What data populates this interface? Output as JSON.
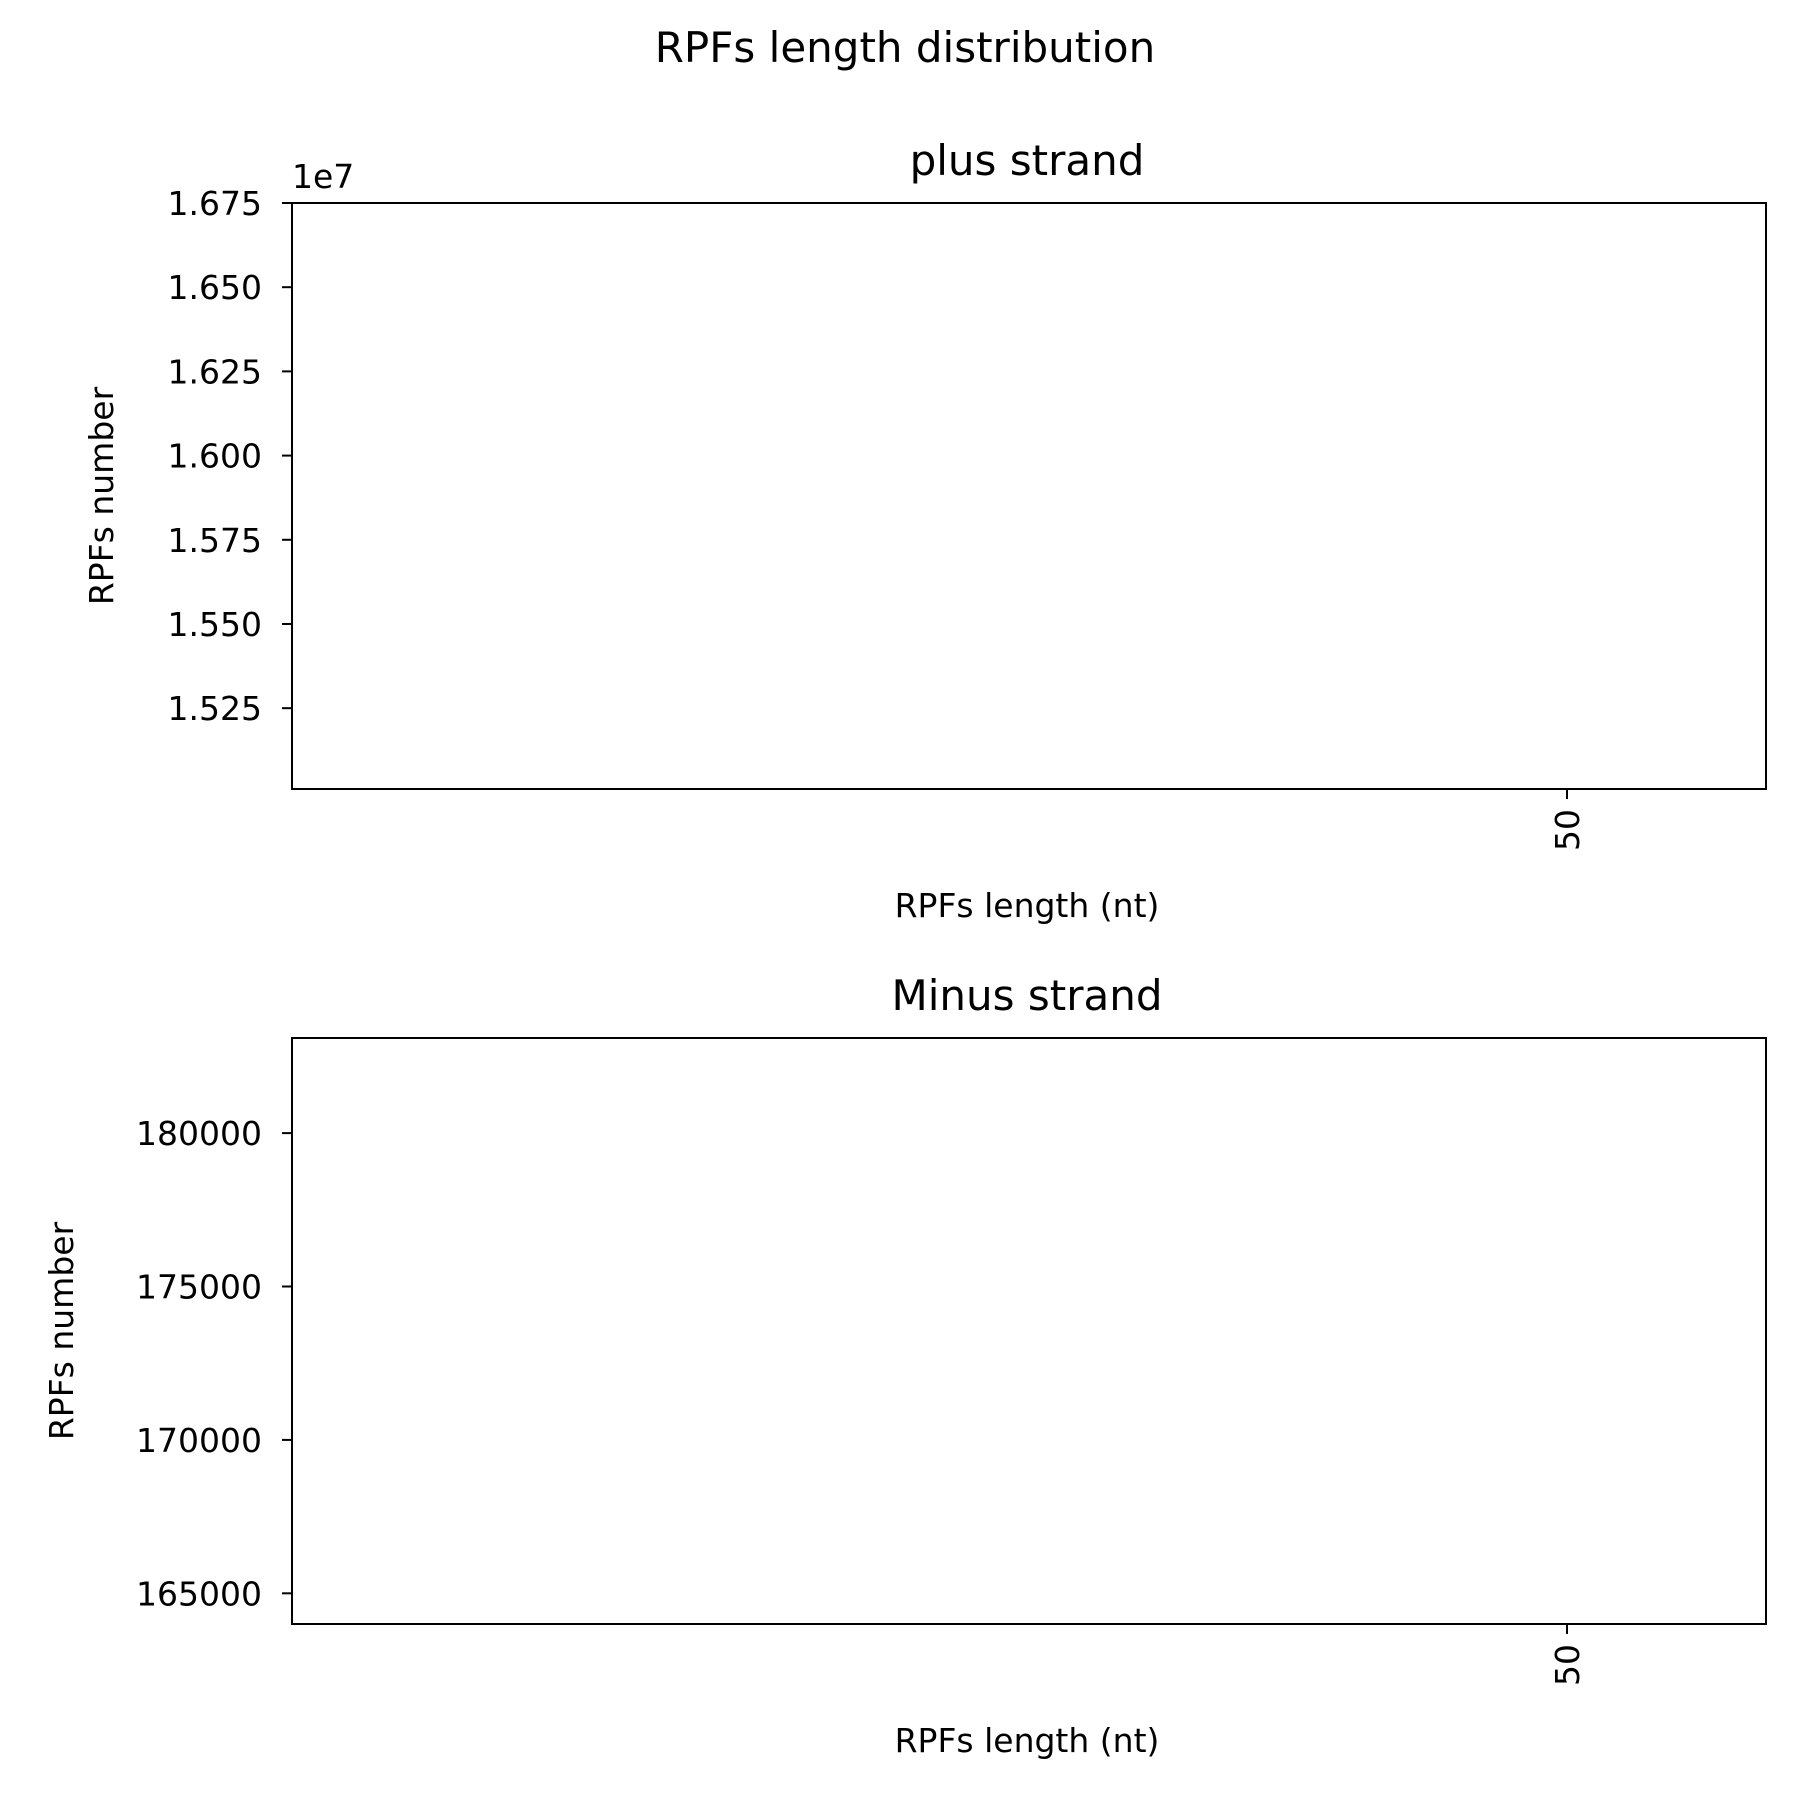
{
  "figure": {
    "suptitle": "RPFs length distribution"
  },
  "chart_data": [
    {
      "type": "bar",
      "title": "plus strand",
      "xlabel": "RPFs length (nt)",
      "ylabel": "RPFs number",
      "offset_text": "1e7",
      "xticks": [
        {
          "value": 50,
          "label": "50"
        }
      ],
      "xlim": [
        32.7,
        52.7
      ],
      "yticks": [
        {
          "value": 15250000,
          "label": "1.525"
        },
        {
          "value": 15500000,
          "label": "1.550"
        },
        {
          "value": 15750000,
          "label": "1.575"
        },
        {
          "value": 16000000,
          "label": "1.600"
        },
        {
          "value": 16250000,
          "label": "1.625"
        },
        {
          "value": 16500000,
          "label": "1.650"
        },
        {
          "value": 16750000,
          "label": "1.675"
        }
      ],
      "ylim": [
        15010000,
        16750000
      ],
      "grid": false,
      "categories": [],
      "values": []
    },
    {
      "type": "bar",
      "title": "Minus strand",
      "xlabel": "RPFs length (nt)",
      "ylabel": "RPFs number",
      "offset_text": "",
      "xticks": [
        {
          "value": 50,
          "label": "50"
        }
      ],
      "xlim": [
        32.7,
        52.7
      ],
      "yticks": [
        {
          "value": 165000,
          "label": "165000"
        },
        {
          "value": 170000,
          "label": "170000"
        },
        {
          "value": 175000,
          "label": "175000"
        },
        {
          "value": 180000,
          "label": "180000"
        }
      ],
      "ylim": [
        164000,
        183100
      ],
      "grid": false,
      "categories": [],
      "values": []
    }
  ]
}
